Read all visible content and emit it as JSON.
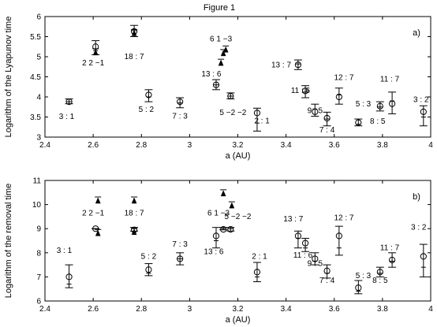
{
  "figure_title": "Figure 1",
  "chart_data": [
    {
      "type": "scatter",
      "panel_tag": "a)",
      "xlabel": "a (AU)",
      "ylabel": "Logarithm of the Lyapunov time",
      "xlim": [
        2.4,
        4.0
      ],
      "ylim": [
        3,
        6
      ],
      "xticks": [
        "2.4",
        "2.6",
        "2.8",
        "3",
        "3.2",
        "3.4",
        "3.6",
        "3.8",
        "4"
      ],
      "yticks": [
        "3",
        "3.5",
        "4",
        "4.5",
        "5",
        "5.5",
        "6"
      ],
      "circle_points": [
        {
          "x": 2.5,
          "y": 3.88,
          "lo": 3.83,
          "hi": 3.95,
          "mid": 3.88
        },
        {
          "x": 2.61,
          "y": 5.25,
          "lo": 5.05,
          "hi": 5.4,
          "mid": 5.15
        },
        {
          "x": 2.77,
          "y": 5.63,
          "lo": 5.5,
          "hi": 5.78,
          "mid": 5.65
        },
        {
          "x": 2.83,
          "y": 4.05,
          "lo": 3.88,
          "hi": 4.18,
          "mid": 4.0
        },
        {
          "x": 2.96,
          "y": 3.88,
          "lo": 3.73,
          "hi": 3.98,
          "mid": 3.85
        },
        {
          "x": 3.11,
          "y": 4.3,
          "lo": 4.18,
          "hi": 4.43,
          "mid": 4.3
        },
        {
          "x": 3.17,
          "y": 4.02,
          "lo": 3.95,
          "hi": 4.1,
          "mid": 4.02
        },
        {
          "x": 3.28,
          "y": 3.6,
          "lo": 3.15,
          "hi": 3.72,
          "mid": 3.35
        },
        {
          "x": 3.45,
          "y": 4.8,
          "lo": 4.68,
          "hi": 4.92,
          "mid": 4.82
        },
        {
          "x": 3.48,
          "y": 4.15,
          "lo": 3.98,
          "hi": 4.28,
          "mid": 4.12
        },
        {
          "x": 3.52,
          "y": 3.63,
          "lo": 3.52,
          "hi": 3.82,
          "mid": 3.7
        },
        {
          "x": 3.57,
          "y": 3.47,
          "lo": 3.28,
          "hi": 3.62,
          "mid": 3.45
        },
        {
          "x": 3.62,
          "y": 4.0,
          "lo": 3.82,
          "hi": 4.22,
          "mid": 4.05
        },
        {
          "x": 3.7,
          "y": 3.36,
          "lo": 3.28,
          "hi": 3.45,
          "mid": 3.32
        },
        {
          "x": 3.79,
          "y": 3.77,
          "lo": 3.65,
          "hi": 3.88,
          "mid": 3.75
        },
        {
          "x": 3.84,
          "y": 3.83,
          "lo": 3.58,
          "hi": 4.12,
          "mid": 3.9
        },
        {
          "x": 3.97,
          "y": 3.63,
          "lo": 3.28,
          "hi": 3.78,
          "mid": 3.5
        }
      ],
      "triangle_points": [
        {
          "x": 2.61,
          "y": 5.1
        },
        {
          "x": 2.77,
          "y": 5.58
        },
        {
          "x": 3.14,
          "y": 5.08
        },
        {
          "x": 3.13,
          "y": 4.84
        },
        {
          "x": 3.15,
          "y": 5.17
        }
      ],
      "annotations": [
        {
          "text": "3 : 1",
          "x": 2.49,
          "y": 3.45
        },
        {
          "text": "2 2 −1",
          "x": 2.6,
          "y": 4.78
        },
        {
          "text": "18 : 7",
          "x": 2.77,
          "y": 4.94
        },
        {
          "text": "5 : 2",
          "x": 2.82,
          "y": 3.63
        },
        {
          "text": "7 : 3",
          "x": 2.96,
          "y": 3.46
        },
        {
          "text": "13 : 6",
          "x": 3.09,
          "y": 4.51
        },
        {
          "text": "6 1 −3",
          "x": 3.13,
          "y": 5.38
        },
        {
          "text": "5 −2 −2",
          "x": 3.18,
          "y": 3.55
        },
        {
          "text": "13 : 7",
          "x": 3.38,
          "y": 4.74
        },
        {
          "text": "11 : 6",
          "x": 3.46,
          "y": 4.1
        },
        {
          "text": "9 : 5",
          "x": 3.52,
          "y": 3.6
        },
        {
          "text": "2 : 1",
          "x": 3.3,
          "y": 3.34
        },
        {
          "text": "7 : 4",
          "x": 3.57,
          "y": 3.12
        },
        {
          "text": "12 : 7",
          "x": 3.64,
          "y": 4.42
        },
        {
          "text": "5 : 3",
          "x": 3.72,
          "y": 3.76
        },
        {
          "text": "8 : 5",
          "x": 3.78,
          "y": 3.33
        },
        {
          "text": "11 : 7",
          "x": 3.83,
          "y": 4.38
        },
        {
          "text": "3 : 2",
          "x": 3.96,
          "y": 3.87
        }
      ]
    },
    {
      "type": "scatter",
      "panel_tag": "b)",
      "xlabel": "a (AU)",
      "ylabel": "Logarithm of the removal time",
      "xlim": [
        2.4,
        4.0
      ],
      "ylim": [
        6,
        11
      ],
      "xticks": [
        "2.4",
        "2.6",
        "2.8",
        "3",
        "3.2",
        "3.4",
        "3.6",
        "3.8",
        "4"
      ],
      "yticks": [
        "6",
        "7",
        "8",
        "9",
        "10",
        "11"
      ],
      "circle_points": [
        {
          "x": 2.5,
          "y": 7.0,
          "lo": 6.55,
          "hi": 7.5,
          "mid": 6.7
        },
        {
          "x": 2.61,
          "y": 9.0,
          "lo": 9.0,
          "hi": 9.0,
          "mid": 9.0
        },
        {
          "x": 2.77,
          "y": 8.95,
          "lo": 8.9,
          "hi": 9.05,
          "mid": 9.0
        },
        {
          "x": 2.83,
          "y": 7.3,
          "lo": 7.05,
          "hi": 7.55,
          "mid": 7.15
        },
        {
          "x": 2.96,
          "y": 7.75,
          "lo": 7.5,
          "hi": 8.0,
          "mid": 7.75
        },
        {
          "x": 3.11,
          "y": 8.7,
          "lo": 8.2,
          "hi": 9.05,
          "mid": 8.5
        },
        {
          "x": 3.14,
          "y": 8.97,
          "lo": 8.95,
          "hi": 9.05,
          "mid": 9.0
        },
        {
          "x": 3.17,
          "y": 8.97,
          "lo": 8.9,
          "hi": 9.05,
          "mid": 9.0
        },
        {
          "x": 3.28,
          "y": 7.2,
          "lo": 6.8,
          "hi": 7.6,
          "mid": 7.0
        },
        {
          "x": 3.45,
          "y": 8.7,
          "lo": 8.2,
          "hi": 8.9,
          "mid": 8.6
        },
        {
          "x": 3.48,
          "y": 8.4,
          "lo": 8.05,
          "hi": 8.6,
          "mid": 8.2
        },
        {
          "x": 3.52,
          "y": 7.75,
          "lo": 7.5,
          "hi": 8.0,
          "mid": 7.65
        },
        {
          "x": 3.57,
          "y": 7.25,
          "lo": 6.95,
          "hi": 7.5,
          "mid": 7.15
        },
        {
          "x": 3.62,
          "y": 8.7,
          "lo": 7.9,
          "hi": 9.1,
          "mid": 8.2
        },
        {
          "x": 3.7,
          "y": 6.55,
          "lo": 6.3,
          "hi": 6.85,
          "mid": 6.4
        },
        {
          "x": 3.79,
          "y": 7.2,
          "lo": 7.0,
          "hi": 7.4,
          "mid": 7.15
        },
        {
          "x": 3.84,
          "y": 7.7,
          "lo": 7.4,
          "hi": 8.0,
          "mid": 7.65
        },
        {
          "x": 3.97,
          "y": 7.85,
          "lo": 7.0,
          "hi": 8.35,
          "mid": 7.4
        }
      ],
      "triangle_points": [
        {
          "x": 2.62,
          "y": 10.15
        },
        {
          "x": 2.62,
          "y": 8.8
        },
        {
          "x": 2.77,
          "y": 10.15
        },
        {
          "x": 2.77,
          "y": 8.85
        },
        {
          "x": 3.14,
          "y": 10.45
        },
        {
          "x": 3.175,
          "y": 9.95
        }
      ],
      "annotations": [
        {
          "text": "3 : 1",
          "x": 2.48,
          "y": 8.0
        },
        {
          "text": "2 2 −1",
          "x": 2.6,
          "y": 9.55
        },
        {
          "text": "18 : 7",
          "x": 2.77,
          "y": 9.55
        },
        {
          "text": "5 : 2",
          "x": 2.83,
          "y": 7.75
        },
        {
          "text": "7 : 3",
          "x": 2.96,
          "y": 8.25
        },
        {
          "text": "13 : 6",
          "x": 3.1,
          "y": 7.95
        },
        {
          "text": "6 1 −3",
          "x": 3.12,
          "y": 9.55
        },
        {
          "text": "5 −2 −2",
          "x": 3.2,
          "y": 9.4
        },
        {
          "text": "2 : 1",
          "x": 3.29,
          "y": 7.75
        },
        {
          "text": "13 : 7",
          "x": 3.43,
          "y": 9.3
        },
        {
          "text": "11 : 6",
          "x": 3.47,
          "y": 7.8
        },
        {
          "text": "9 : 5",
          "x": 3.52,
          "y": 7.45
        },
        {
          "text": "7 : 4",
          "x": 3.57,
          "y": 6.75
        },
        {
          "text": "12 : 7",
          "x": 3.64,
          "y": 9.35
        },
        {
          "text": "5 : 3",
          "x": 3.72,
          "y": 6.95
        },
        {
          "text": "8 : 5",
          "x": 3.79,
          "y": 6.75
        },
        {
          "text": "11 : 7",
          "x": 3.83,
          "y": 8.1
        },
        {
          "text": "3 : 2",
          "x": 3.95,
          "y": 8.95
        }
      ]
    }
  ]
}
